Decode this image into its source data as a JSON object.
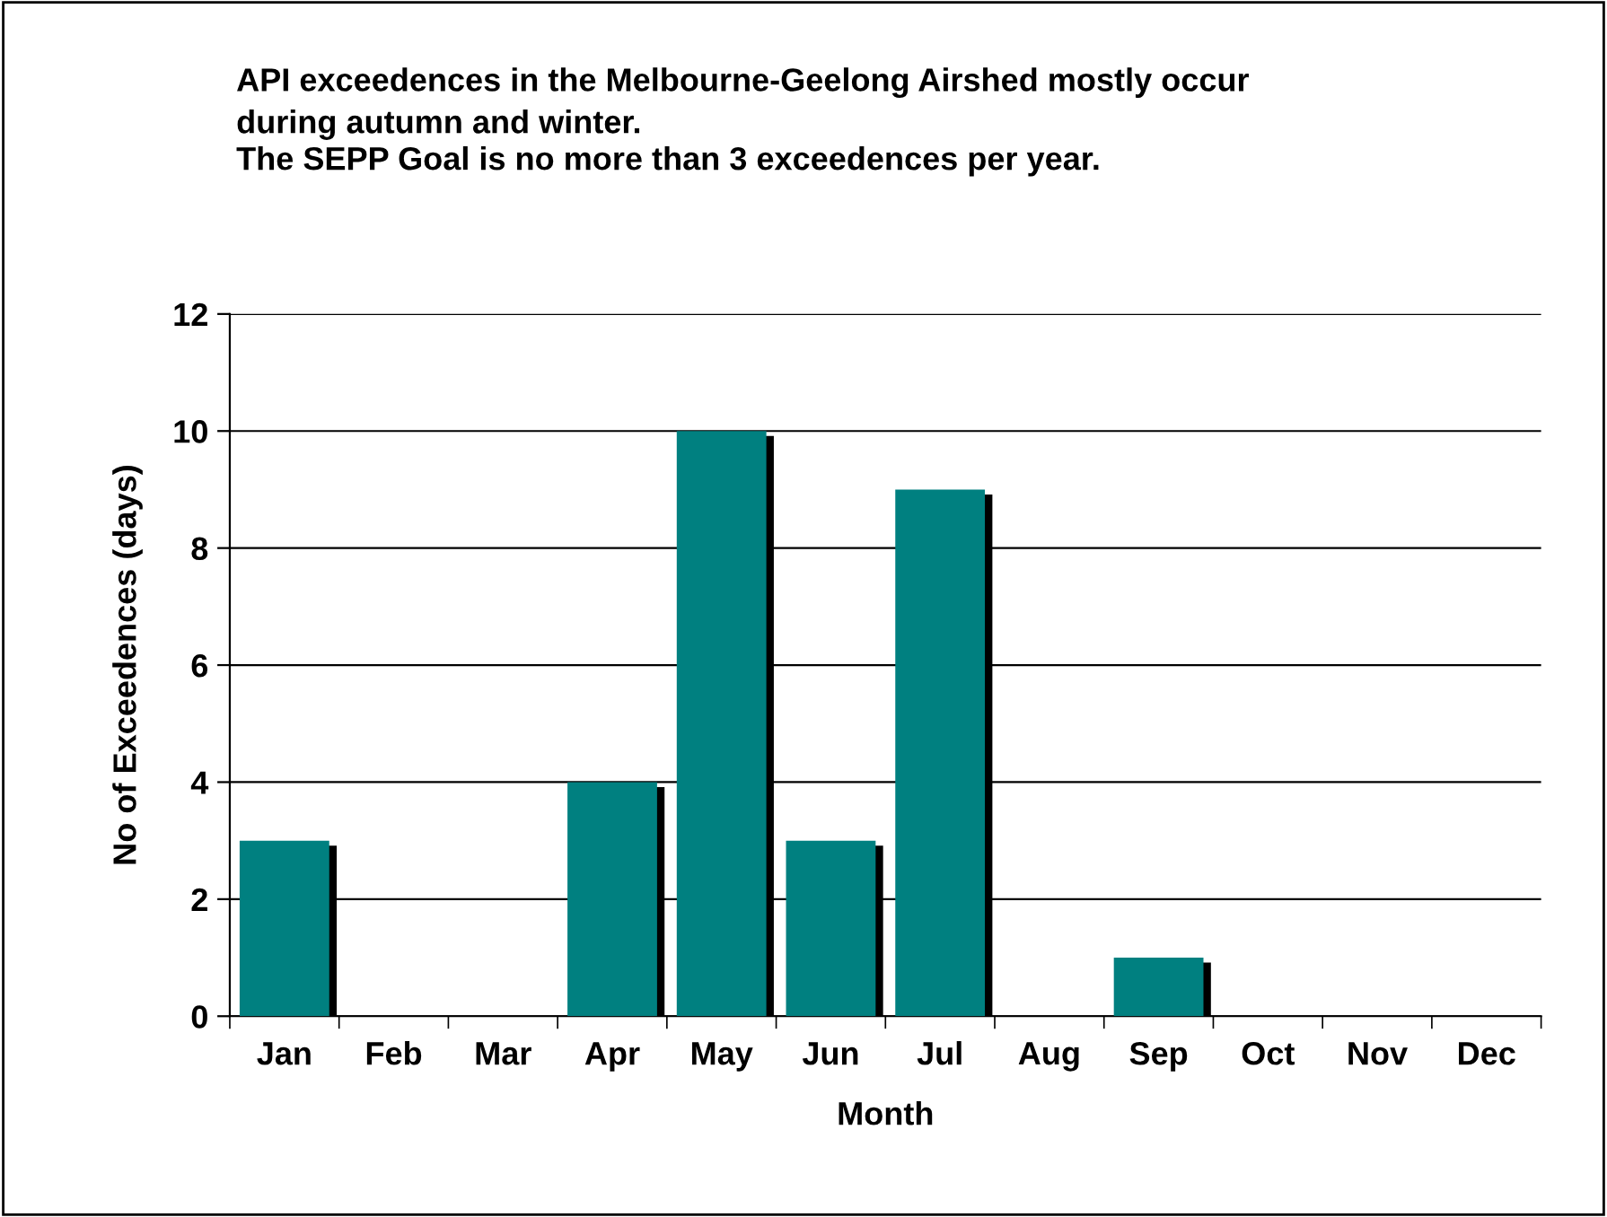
{
  "chart_data": {
    "type": "bar",
    "title": "API exceedences in the Melbourne-Geelong Airshed mostly occur\nduring autumn and winter.",
    "subtitle": "The SEPP Goal is no more than 3 exceedences per year.",
    "xlabel": "Month",
    "ylabel": "No of Exceedences (days)",
    "categories": [
      "Jan",
      "Feb",
      "Mar",
      "Apr",
      "May",
      "Jun",
      "Jul",
      "Aug",
      "Sep",
      "Oct",
      "Nov",
      "Dec"
    ],
    "values": [
      3,
      0,
      0,
      4,
      10,
      3,
      9,
      0,
      1,
      0,
      0,
      0
    ],
    "color": "#008080",
    "ylim": [
      0,
      12
    ],
    "yticks": [
      0,
      2,
      4,
      6,
      8,
      10,
      12
    ],
    "grid": "y",
    "legend": false
  }
}
